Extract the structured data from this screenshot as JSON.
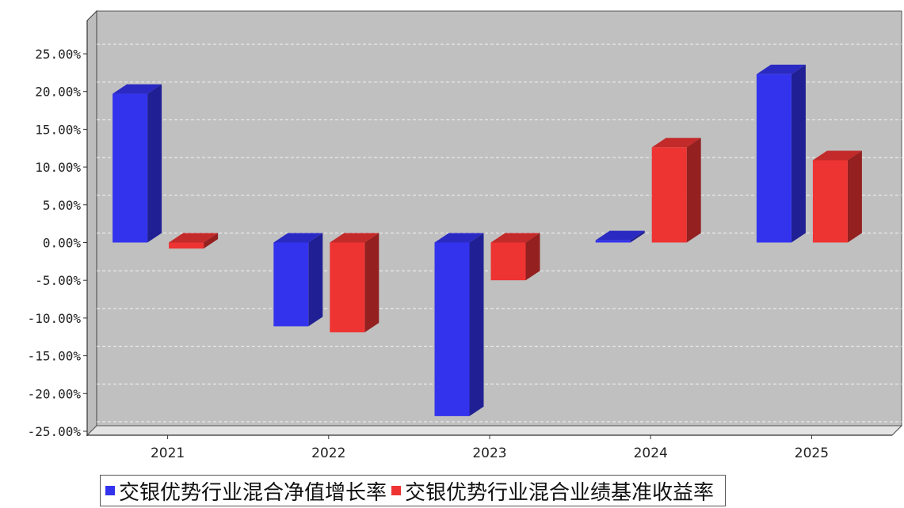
{
  "chart_data": {
    "type": "bar",
    "categories": [
      "2021",
      "2022",
      "2023",
      "2024",
      "2025"
    ],
    "series": [
      {
        "name": "交银优势行业混合净值增长率",
        "color": "#3333ee",
        "values": [
          19.7,
          -11.1,
          -23.0,
          0.3,
          22.3
        ]
      },
      {
        "name": "交银优势行业混合业绩基准收益率",
        "color": "#ee3333",
        "values": [
          -0.8,
          -11.9,
          -5.0,
          12.6,
          10.9
        ]
      }
    ],
    "yticks": [
      "25.00%",
      "20.00%",
      "15.00%",
      "10.00%",
      "5.00%",
      "0.00%",
      "-5.00%",
      "-10.00%",
      "-15.00%",
      "-20.00%",
      "-25.00%"
    ],
    "ylim": [
      -25,
      25
    ],
    "grid": true,
    "legend_position": "bottom",
    "title": "",
    "xlabel": "",
    "ylabel": ""
  }
}
